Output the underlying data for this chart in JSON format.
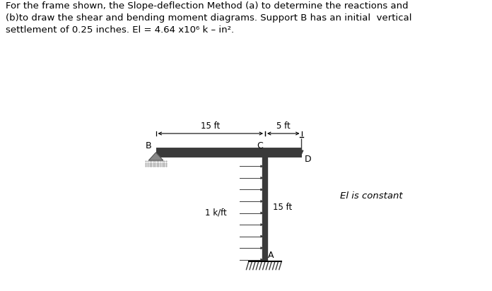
{
  "title_text": "For the frame shown, the Slope-deflection Method (a) to determine the reactions and\n(b)to draw the shear and bending moment diagrams. Support B has an initial  vertical\nsettlement of 0.25 inches. El = 4.64 x10⁶ k – in². ",
  "title_fontsize": 9.5,
  "background_color": "#ffffff",
  "beam_color": "#3a3a3a",
  "column_color": "#3a3a3a",
  "label_B": "B",
  "label_C": "C",
  "label_D": "D",
  "label_A": "A",
  "label_15ft_beam": "15 ft",
  "label_5ft": "5 ft",
  "label_15ft_col": "15 ft",
  "label_load": "1 k/ft",
  "label_EI": "El is constant",
  "arrow_color": "#3a3a3a",
  "hatch_color": "#3a3a3a",
  "support_color": "#888888",
  "dim_color": "#555555"
}
